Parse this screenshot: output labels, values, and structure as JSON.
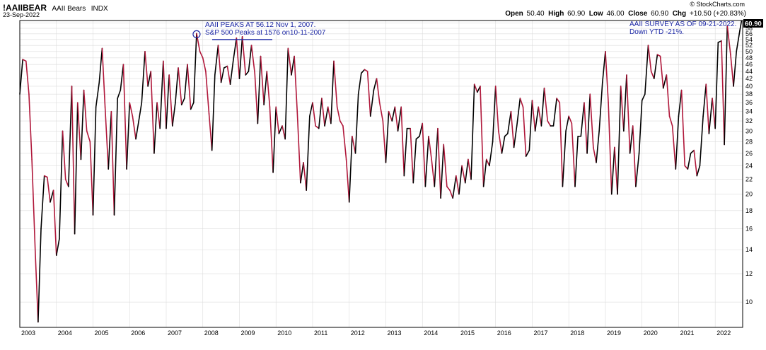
{
  "header": {
    "symbol": "!AAIIBEAR",
    "name": "AAII Bears",
    "exchange": "INDX",
    "date": "23-Sep-2022",
    "logo": "© StockCharts.com"
  },
  "ohlc": {
    "open_label": "Open",
    "open": "50.40",
    "high_label": "High",
    "high": "60.90",
    "low_label": "Low",
    "low": "46.00",
    "close_label": "Close",
    "close": "60.90",
    "chg_label": "Chg",
    "chg": "+10.50 (+20.83%)"
  },
  "price_tag": "60.90",
  "colors": {
    "up": "#000000",
    "down": "#b0173a",
    "annotation": "#1f2aa6",
    "grid": "#dcdcdc"
  },
  "annotations": {
    "peak_line1": "AAII PEAKS AT 56.12 Nov 1, 2007.",
    "peak_line2": "S&P 500 Peaks at 1576 on10-11-2007",
    "survey_line1": "AAII SURVEY AS OF 09-21-2022.",
    "survey_line2": "Down YTD -21%."
  },
  "chart_data": {
    "type": "line",
    "scale": "log",
    "ylim": [
      8.5,
      61
    ],
    "ytick_values": [
      10,
      12,
      14,
      16,
      18,
      20,
      22,
      24,
      26,
      28,
      30,
      32,
      34,
      36,
      38,
      40,
      42,
      44,
      46,
      48,
      50,
      52,
      54,
      56,
      58,
      60
    ],
    "x_labels": [
      "2003",
      "2004",
      "2005",
      "2006",
      "2007",
      "2008",
      "2009",
      "2010",
      "2011",
      "2012",
      "2013",
      "2014",
      "2015",
      "2016",
      "2017",
      "2018",
      "2019",
      "2020",
      "2021",
      "2022"
    ],
    "xlim": [
      2003.0,
      2022.75
    ],
    "series": [
      {
        "points": [
          [
            2003.0,
            38
          ],
          [
            2003.08,
            47.5
          ],
          [
            2003.17,
            47
          ],
          [
            2003.25,
            38
          ],
          [
            2003.33,
            25
          ],
          [
            2003.42,
            14
          ],
          [
            2003.5,
            8.8
          ],
          [
            2003.58,
            16
          ],
          [
            2003.67,
            22.5
          ],
          [
            2003.75,
            22.3
          ],
          [
            2003.83,
            19
          ],
          [
            2003.92,
            20.5
          ],
          [
            2004.0,
            13.5
          ],
          [
            2004.08,
            15
          ],
          [
            2004.17,
            30
          ],
          [
            2004.25,
            22
          ],
          [
            2004.33,
            21
          ],
          [
            2004.42,
            40
          ],
          [
            2004.5,
            15.5
          ],
          [
            2004.58,
            36
          ],
          [
            2004.67,
            25
          ],
          [
            2004.75,
            39
          ],
          [
            2004.83,
            30
          ],
          [
            2004.92,
            28
          ],
          [
            2005.0,
            17.5
          ],
          [
            2005.08,
            35
          ],
          [
            2005.17,
            41
          ],
          [
            2005.25,
            51
          ],
          [
            2005.33,
            35
          ],
          [
            2005.42,
            23.5
          ],
          [
            2005.5,
            34
          ],
          [
            2005.58,
            17.5
          ],
          [
            2005.67,
            37
          ],
          [
            2005.75,
            39
          ],
          [
            2005.83,
            46
          ],
          [
            2005.92,
            23.5
          ],
          [
            2006.0,
            36
          ],
          [
            2006.08,
            33
          ],
          [
            2006.17,
            28.5
          ],
          [
            2006.25,
            32
          ],
          [
            2006.33,
            36
          ],
          [
            2006.42,
            50
          ],
          [
            2006.5,
            40
          ],
          [
            2006.58,
            44
          ],
          [
            2006.67,
            26
          ],
          [
            2006.75,
            36
          ],
          [
            2006.83,
            30.5
          ],
          [
            2006.92,
            47
          ],
          [
            2007.0,
            30.5
          ],
          [
            2007.08,
            43
          ],
          [
            2007.17,
            31
          ],
          [
            2007.25,
            36
          ],
          [
            2007.33,
            45
          ],
          [
            2007.42,
            35.5
          ],
          [
            2007.5,
            37
          ],
          [
            2007.58,
            46
          ],
          [
            2007.67,
            34.5
          ],
          [
            2007.75,
            36
          ],
          [
            2007.83,
            56.12
          ],
          [
            2007.92,
            50
          ],
          [
            2008.0,
            48
          ],
          [
            2008.08,
            44
          ],
          [
            2008.17,
            33.5
          ],
          [
            2008.25,
            26.5
          ],
          [
            2008.33,
            43
          ],
          [
            2008.42,
            52
          ],
          [
            2008.5,
            41
          ],
          [
            2008.58,
            45
          ],
          [
            2008.67,
            45.5
          ],
          [
            2008.75,
            40.5
          ],
          [
            2008.83,
            47
          ],
          [
            2008.92,
            54.5
          ],
          [
            2009.0,
            42
          ],
          [
            2009.08,
            55
          ],
          [
            2009.17,
            43
          ],
          [
            2009.25,
            44
          ],
          [
            2009.33,
            52
          ],
          [
            2009.42,
            43.5
          ],
          [
            2009.5,
            31.5
          ],
          [
            2009.58,
            48.5
          ],
          [
            2009.67,
            35.5
          ],
          [
            2009.75,
            44
          ],
          [
            2009.83,
            35
          ],
          [
            2009.92,
            23
          ],
          [
            2010.0,
            35
          ],
          [
            2010.08,
            29.5
          ],
          [
            2010.17,
            31
          ],
          [
            2010.25,
            28.5
          ],
          [
            2010.33,
            51
          ],
          [
            2010.42,
            43
          ],
          [
            2010.5,
            48.5
          ],
          [
            2010.58,
            34
          ],
          [
            2010.67,
            21.5
          ],
          [
            2010.75,
            24.5
          ],
          [
            2010.83,
            20.5
          ],
          [
            2010.92,
            33
          ],
          [
            2011.0,
            36
          ],
          [
            2011.08,
            31
          ],
          [
            2011.17,
            30.5
          ],
          [
            2011.25,
            37
          ],
          [
            2011.33,
            31
          ],
          [
            2011.42,
            35
          ],
          [
            2011.5,
            31.5
          ],
          [
            2011.58,
            47
          ],
          [
            2011.67,
            35
          ],
          [
            2011.75,
            32
          ],
          [
            2011.83,
            31
          ],
          [
            2011.92,
            25
          ],
          [
            2012.0,
            19
          ],
          [
            2012.08,
            29
          ],
          [
            2012.17,
            26
          ],
          [
            2012.25,
            38
          ],
          [
            2012.33,
            43.5
          ],
          [
            2012.42,
            44.5
          ],
          [
            2012.5,
            44
          ],
          [
            2012.58,
            33
          ],
          [
            2012.67,
            39
          ],
          [
            2012.75,
            42
          ],
          [
            2012.83,
            36
          ],
          [
            2012.92,
            32
          ],
          [
            2013.0,
            24.5
          ],
          [
            2013.08,
            34
          ],
          [
            2013.17,
            32
          ],
          [
            2013.25,
            35
          ],
          [
            2013.33,
            30
          ],
          [
            2013.42,
            35
          ],
          [
            2013.5,
            22.5
          ],
          [
            2013.58,
            30.5
          ],
          [
            2013.67,
            30.5
          ],
          [
            2013.75,
            21.5
          ],
          [
            2013.83,
            28.5
          ],
          [
            2013.92,
            29
          ],
          [
            2014.0,
            31.5
          ],
          [
            2014.08,
            21
          ],
          [
            2014.17,
            29
          ],
          [
            2014.25,
            25
          ],
          [
            2014.33,
            21
          ],
          [
            2014.42,
            30.5
          ],
          [
            2014.5,
            19.5
          ],
          [
            2014.58,
            27.5
          ],
          [
            2014.67,
            21
          ],
          [
            2014.75,
            20.5
          ],
          [
            2014.83,
            19.5
          ],
          [
            2014.92,
            22.5
          ],
          [
            2015.0,
            20
          ],
          [
            2015.08,
            24
          ],
          [
            2015.17,
            21.5
          ],
          [
            2015.25,
            25
          ],
          [
            2015.33,
            22
          ],
          [
            2015.42,
            40.5
          ],
          [
            2015.5,
            38.5
          ],
          [
            2015.58,
            40
          ],
          [
            2015.67,
            21
          ],
          [
            2015.75,
            25
          ],
          [
            2015.83,
            24
          ],
          [
            2015.92,
            28
          ],
          [
            2016.0,
            40
          ],
          [
            2016.08,
            30
          ],
          [
            2016.17,
            26
          ],
          [
            2016.25,
            29
          ],
          [
            2016.33,
            29.5
          ],
          [
            2016.42,
            34
          ],
          [
            2016.5,
            27
          ],
          [
            2016.58,
            31
          ],
          [
            2016.67,
            37
          ],
          [
            2016.75,
            35
          ],
          [
            2016.83,
            25.5
          ],
          [
            2016.92,
            26.5
          ],
          [
            2017.0,
            36.5
          ],
          [
            2017.08,
            30
          ],
          [
            2017.17,
            35
          ],
          [
            2017.25,
            31
          ],
          [
            2017.33,
            39.5
          ],
          [
            2017.42,
            32
          ],
          [
            2017.5,
            31
          ],
          [
            2017.58,
            31
          ],
          [
            2017.67,
            37
          ],
          [
            2017.75,
            36
          ],
          [
            2017.83,
            21
          ],
          [
            2017.92,
            30
          ],
          [
            2018.0,
            33
          ],
          [
            2018.08,
            31.5
          ],
          [
            2018.17,
            21
          ],
          [
            2018.25,
            29
          ],
          [
            2018.33,
            29
          ],
          [
            2018.42,
            36
          ],
          [
            2018.5,
            26
          ],
          [
            2018.58,
            38
          ],
          [
            2018.67,
            27
          ],
          [
            2018.75,
            24.5
          ],
          [
            2018.83,
            30
          ],
          [
            2018.92,
            41
          ],
          [
            2019.0,
            50
          ],
          [
            2019.08,
            36
          ],
          [
            2019.17,
            20
          ],
          [
            2019.25,
            27
          ],
          [
            2019.33,
            20
          ],
          [
            2019.42,
            40
          ],
          [
            2019.5,
            30
          ],
          [
            2019.58,
            43
          ],
          [
            2019.67,
            26
          ],
          [
            2019.75,
            31
          ],
          [
            2019.83,
            21
          ],
          [
            2019.92,
            26
          ],
          [
            2020.0,
            36.5
          ],
          [
            2020.08,
            38
          ],
          [
            2020.17,
            52
          ],
          [
            2020.25,
            44
          ],
          [
            2020.33,
            42
          ],
          [
            2020.42,
            49
          ],
          [
            2020.5,
            48.5
          ],
          [
            2020.58,
            39.5
          ],
          [
            2020.67,
            43
          ],
          [
            2020.75,
            33
          ],
          [
            2020.83,
            31
          ],
          [
            2020.92,
            23.5
          ],
          [
            2021.0,
            33
          ],
          [
            2021.08,
            39
          ],
          [
            2021.17,
            24
          ],
          [
            2021.25,
            23.5
          ],
          [
            2021.33,
            26
          ],
          [
            2021.42,
            26.5
          ],
          [
            2021.5,
            22.5
          ],
          [
            2021.58,
            24
          ],
          [
            2021.67,
            33
          ],
          [
            2021.75,
            40.5
          ],
          [
            2021.83,
            29.5
          ],
          [
            2021.92,
            37
          ],
          [
            2022.0,
            30.5
          ],
          [
            2022.08,
            53
          ],
          [
            2022.17,
            53.5
          ],
          [
            2022.25,
            27.5
          ],
          [
            2022.33,
            59
          ],
          [
            2022.42,
            49
          ],
          [
            2022.5,
            40
          ],
          [
            2022.58,
            50
          ],
          [
            2022.67,
            57
          ],
          [
            2022.72,
            60.9
          ]
        ]
      }
    ]
  }
}
